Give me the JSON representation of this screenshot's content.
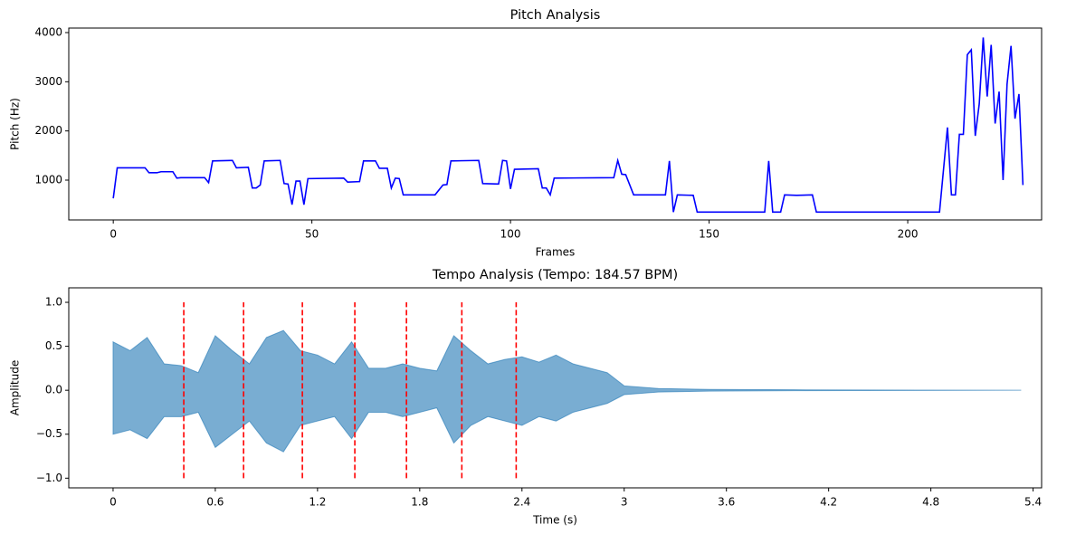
{
  "chart_data": [
    {
      "type": "line",
      "title": "Pitch Analysis",
      "xlabel": "Frames",
      "ylabel": "Pitch (Hz)",
      "color": "#0000ff",
      "xlim": [
        -11.2,
        233.7
      ],
      "ylim": [
        190,
        4092
      ],
      "xticks": [
        0,
        50,
        100,
        150,
        200
      ],
      "yticks": [
        1000,
        2000,
        3000,
        4000
      ],
      "x": [
        0,
        1,
        8,
        9,
        11,
        12,
        15,
        16,
        17,
        23,
        24,
        25,
        30,
        31,
        34,
        35,
        36,
        37,
        38,
        42,
        43,
        44,
        45,
        46,
        47,
        48,
        49,
        58,
        59,
        62,
        63,
        66,
        67,
        69,
        70,
        71,
        72,
        73,
        81,
        83,
        84,
        85,
        92,
        93,
        97,
        98,
        99,
        100,
        101,
        107,
        108,
        109,
        110,
        111,
        126,
        127,
        128,
        129,
        131,
        139,
        140,
        141,
        142,
        146,
        147,
        164,
        165,
        166,
        168,
        169,
        172,
        176,
        177,
        208,
        210,
        211,
        212,
        213,
        214,
        215,
        216,
        217,
        218,
        219,
        220,
        221,
        222,
        223,
        224,
        225,
        226,
        227,
        228,
        229
      ],
      "values": [
        630,
        1250,
        1250,
        1150,
        1150,
        1170,
        1170,
        1040,
        1050,
        1050,
        950,
        1390,
        1400,
        1250,
        1260,
        840,
        840,
        900,
        1390,
        1400,
        930,
        920,
        500,
        980,
        980,
        500,
        1030,
        1040,
        960,
        970,
        1390,
        1390,
        1240,
        1240,
        840,
        1040,
        1030,
        700,
        700,
        900,
        910,
        1390,
        1400,
        930,
        920,
        1400,
        1390,
        820,
        1220,
        1230,
        840,
        840,
        700,
        1040,
        1050,
        1400,
        1120,
        1110,
        700,
        700,
        1390,
        350,
        700,
        690,
        350,
        350,
        1390,
        350,
        350,
        700,
        690,
        700,
        350,
        350,
        2070,
        700,
        700,
        1930,
        1930,
        3550,
        3650,
        1900,
        2550,
        3900,
        2700,
        3750,
        2150,
        2800,
        1000,
        2950,
        3730,
        2250,
        2750,
        900
      ]
    },
    {
      "type": "waveform",
      "title": "Tempo Analysis (Tempo: 184.57 BPM)",
      "xlabel": "Time (s)",
      "ylabel": "Amplitude",
      "color": "#1f77b4",
      "beat_color": "#ff0000",
      "xlim": [
        -0.26,
        5.45
      ],
      "ylim": [
        -1.11,
        1.165
      ],
      "xticks": [
        0,
        0.6,
        1.2,
        1.8,
        2.4,
        3,
        3.6,
        4.2,
        4.8,
        5.4
      ],
      "yticks": [
        {
          "value": -1,
          "label": "−1.0"
        },
        {
          "value": -0.5,
          "label": "−0.5"
        },
        {
          "value": 0,
          "label": "0.0"
        },
        {
          "value": 0.5,
          "label": "0.5"
        },
        {
          "value": 1,
          "label": "1.0"
        }
      ],
      "x": [
        0,
        0.1,
        0.2,
        0.3,
        0.4,
        0.5,
        0.6,
        0.7,
        0.8,
        0.9,
        1.0,
        1.1,
        1.2,
        1.3,
        1.4,
        1.5,
        1.6,
        1.7,
        1.8,
        1.9,
        2.0,
        2.1,
        2.2,
        2.3,
        2.4,
        2.5,
        2.6,
        2.7,
        2.8,
        2.9,
        3.0,
        3.2,
        3.5,
        4.0,
        5.33
      ],
      "upper": [
        0.55,
        0.45,
        0.6,
        0.3,
        0.28,
        0.2,
        0.62,
        0.45,
        0.3,
        0.6,
        0.68,
        0.45,
        0.4,
        0.3,
        0.55,
        0.25,
        0.25,
        0.3,
        0.25,
        0.22,
        0.62,
        0.45,
        0.3,
        0.35,
        0.38,
        0.32,
        0.4,
        0.3,
        0.25,
        0.2,
        0.05,
        0.02,
        0.01,
        0.005,
        0
      ],
      "lower": [
        -0.5,
        -0.45,
        -0.55,
        -0.3,
        -0.3,
        -0.25,
        -0.65,
        -0.5,
        -0.35,
        -0.6,
        -0.7,
        -0.4,
        -0.35,
        -0.3,
        -0.55,
        -0.25,
        -0.25,
        -0.3,
        -0.25,
        -0.2,
        -0.6,
        -0.4,
        -0.3,
        -0.35,
        -0.4,
        -0.3,
        -0.35,
        -0.25,
        -0.2,
        -0.15,
        -0.05,
        -0.02,
        -0.01,
        -0.005,
        0
      ],
      "beats": [
        0.415,
        0.766,
        1.111,
        1.419,
        1.722,
        2.047,
        2.366
      ],
      "beat_extent": [
        -1,
        1
      ]
    }
  ]
}
